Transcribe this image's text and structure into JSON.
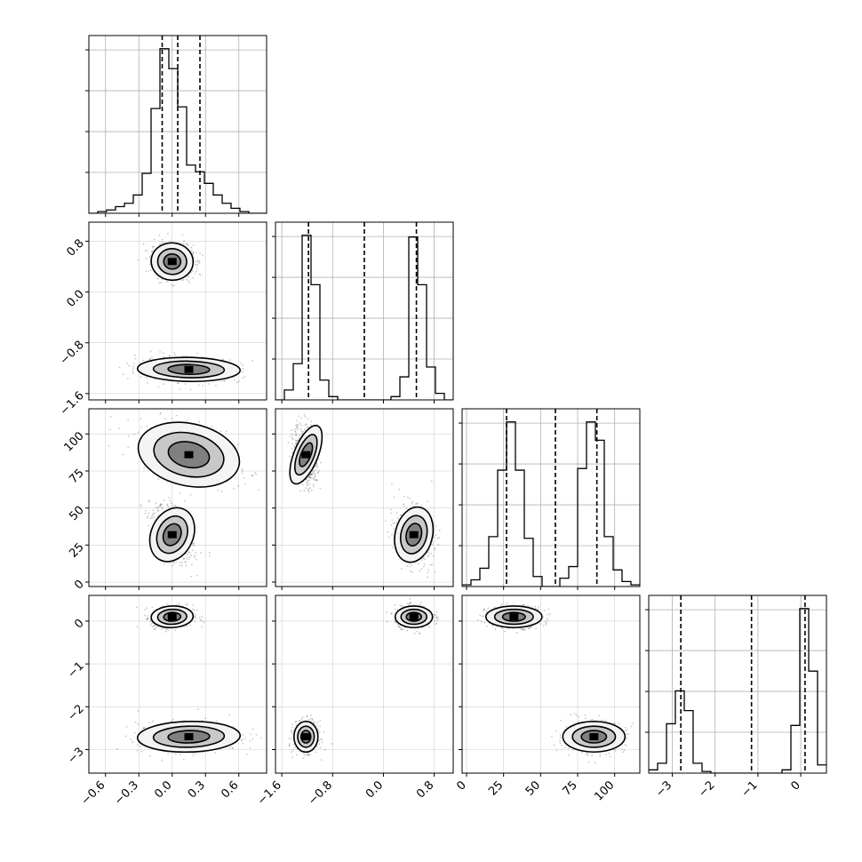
{
  "chart_data": {
    "type": "corner",
    "title": "",
    "variables": [
      {
        "index": 0,
        "label": "",
        "range": [
          -0.75,
          0.85
        ],
        "ticks": [
          -0.6,
          -0.3,
          0.0,
          0.3,
          0.6
        ],
        "tick_labels": [
          "−0.6",
          "−0.3",
          "0.0",
          "0.3",
          "0.6"
        ],
        "quantiles": [
          -0.09,
          0.05,
          0.25
        ],
        "histogram": {
          "edges": [
            -0.75,
            -0.67,
            -0.59,
            -0.51,
            -0.43,
            -0.35,
            -0.27,
            -0.19,
            -0.11,
            -0.03,
            0.05,
            0.13,
            0.21,
            0.29,
            0.37,
            0.45,
            0.53,
            0.61,
            0.69,
            0.77,
            0.85
          ],
          "counts": [
            0.0,
            0.01,
            0.02,
            0.04,
            0.06,
            0.11,
            0.24,
            0.63,
            0.99,
            0.87,
            0.64,
            0.29,
            0.25,
            0.18,
            0.11,
            0.06,
            0.03,
            0.01,
            0.0,
            0.0
          ]
        }
      },
      {
        "index": 1,
        "label": "",
        "range": [
          -1.7,
          1.1
        ],
        "ticks": [
          -1.6,
          -0.8,
          0.0,
          0.8
        ],
        "tick_labels": [
          "−1.6",
          "−0.8",
          "0.0",
          "0.8"
        ],
        "quantiles": [
          -1.18,
          -0.3,
          0.52
        ],
        "histogram": {
          "edges": [
            -1.7,
            -1.56,
            -1.42,
            -1.28,
            -1.14,
            -1.0,
            -0.86,
            -0.72,
            -0.58,
            -0.44,
            -0.3,
            -0.16,
            -0.02,
            0.12,
            0.26,
            0.4,
            0.54,
            0.68,
            0.82,
            0.96,
            1.1
          ],
          "counts": [
            0.0,
            0.06,
            0.22,
            1.0,
            0.7,
            0.12,
            0.02,
            0.0,
            0.0,
            0.0,
            0.0,
            0.0,
            0.0,
            0.02,
            0.14,
            0.99,
            0.7,
            0.2,
            0.04,
            0.0
          ]
        }
      },
      {
        "index": 2,
        "label": "",
        "range": [
          -3,
          117
        ],
        "ticks": [
          0,
          25,
          50,
          75,
          100
        ],
        "tick_labels": [
          "0",
          "25",
          "50",
          "75",
          "100"
        ],
        "quantiles": [
          27,
          60,
          88
        ],
        "histogram": {
          "edges": [
            -3,
            3,
            9,
            15,
            21,
            27,
            33,
            39,
            45,
            51,
            57,
            63,
            69,
            75,
            81,
            87,
            93,
            99,
            105,
            111,
            117
          ],
          "counts": [
            0.01,
            0.04,
            0.11,
            0.3,
            0.7,
            0.99,
            0.7,
            0.29,
            0.06,
            0.0,
            0.0,
            0.05,
            0.12,
            0.71,
            0.99,
            0.88,
            0.3,
            0.1,
            0.03,
            0.01
          ]
        }
      },
      {
        "index": 3,
        "label": "",
        "range": [
          -3.55,
          0.6
        ],
        "ticks": [
          -3,
          -2,
          -1,
          0
        ],
        "tick_labels": [
          "−3",
          "−2",
          "−1",
          "0"
        ],
        "quantiles": [
          -2.8,
          -1.15,
          0.1
        ],
        "histogram": {
          "edges": [
            -3.55,
            -3.343,
            -3.135,
            -2.928,
            -2.72,
            -2.513,
            -2.305,
            -2.098,
            -1.89,
            -1.683,
            -1.475,
            -1.268,
            -1.06,
            -0.853,
            -0.645,
            -0.438,
            -0.23,
            -0.023,
            0.185,
            0.392,
            0.6
          ],
          "counts": [
            0.02,
            0.06,
            0.3,
            0.5,
            0.38,
            0.06,
            0.01,
            0.0,
            0.0,
            0.0,
            0.0,
            0.0,
            0.0,
            0.0,
            0.0,
            0.02,
            0.29,
            1.0,
            0.62,
            0.05
          ]
        }
      }
    ],
    "modes": [
      {
        "mean": [
          0.0,
          0.48,
          32,
          0.1
        ],
        "std": [
          0.09,
          0.14,
          9,
          0.12
        ]
      },
      {
        "mean": [
          0.15,
          -1.22,
          86,
          -2.7
        ],
        "std": [
          0.22,
          0.09,
          10,
          0.17
        ]
      }
    ],
    "contour_levels": 3,
    "grid": true,
    "legend": "none"
  }
}
